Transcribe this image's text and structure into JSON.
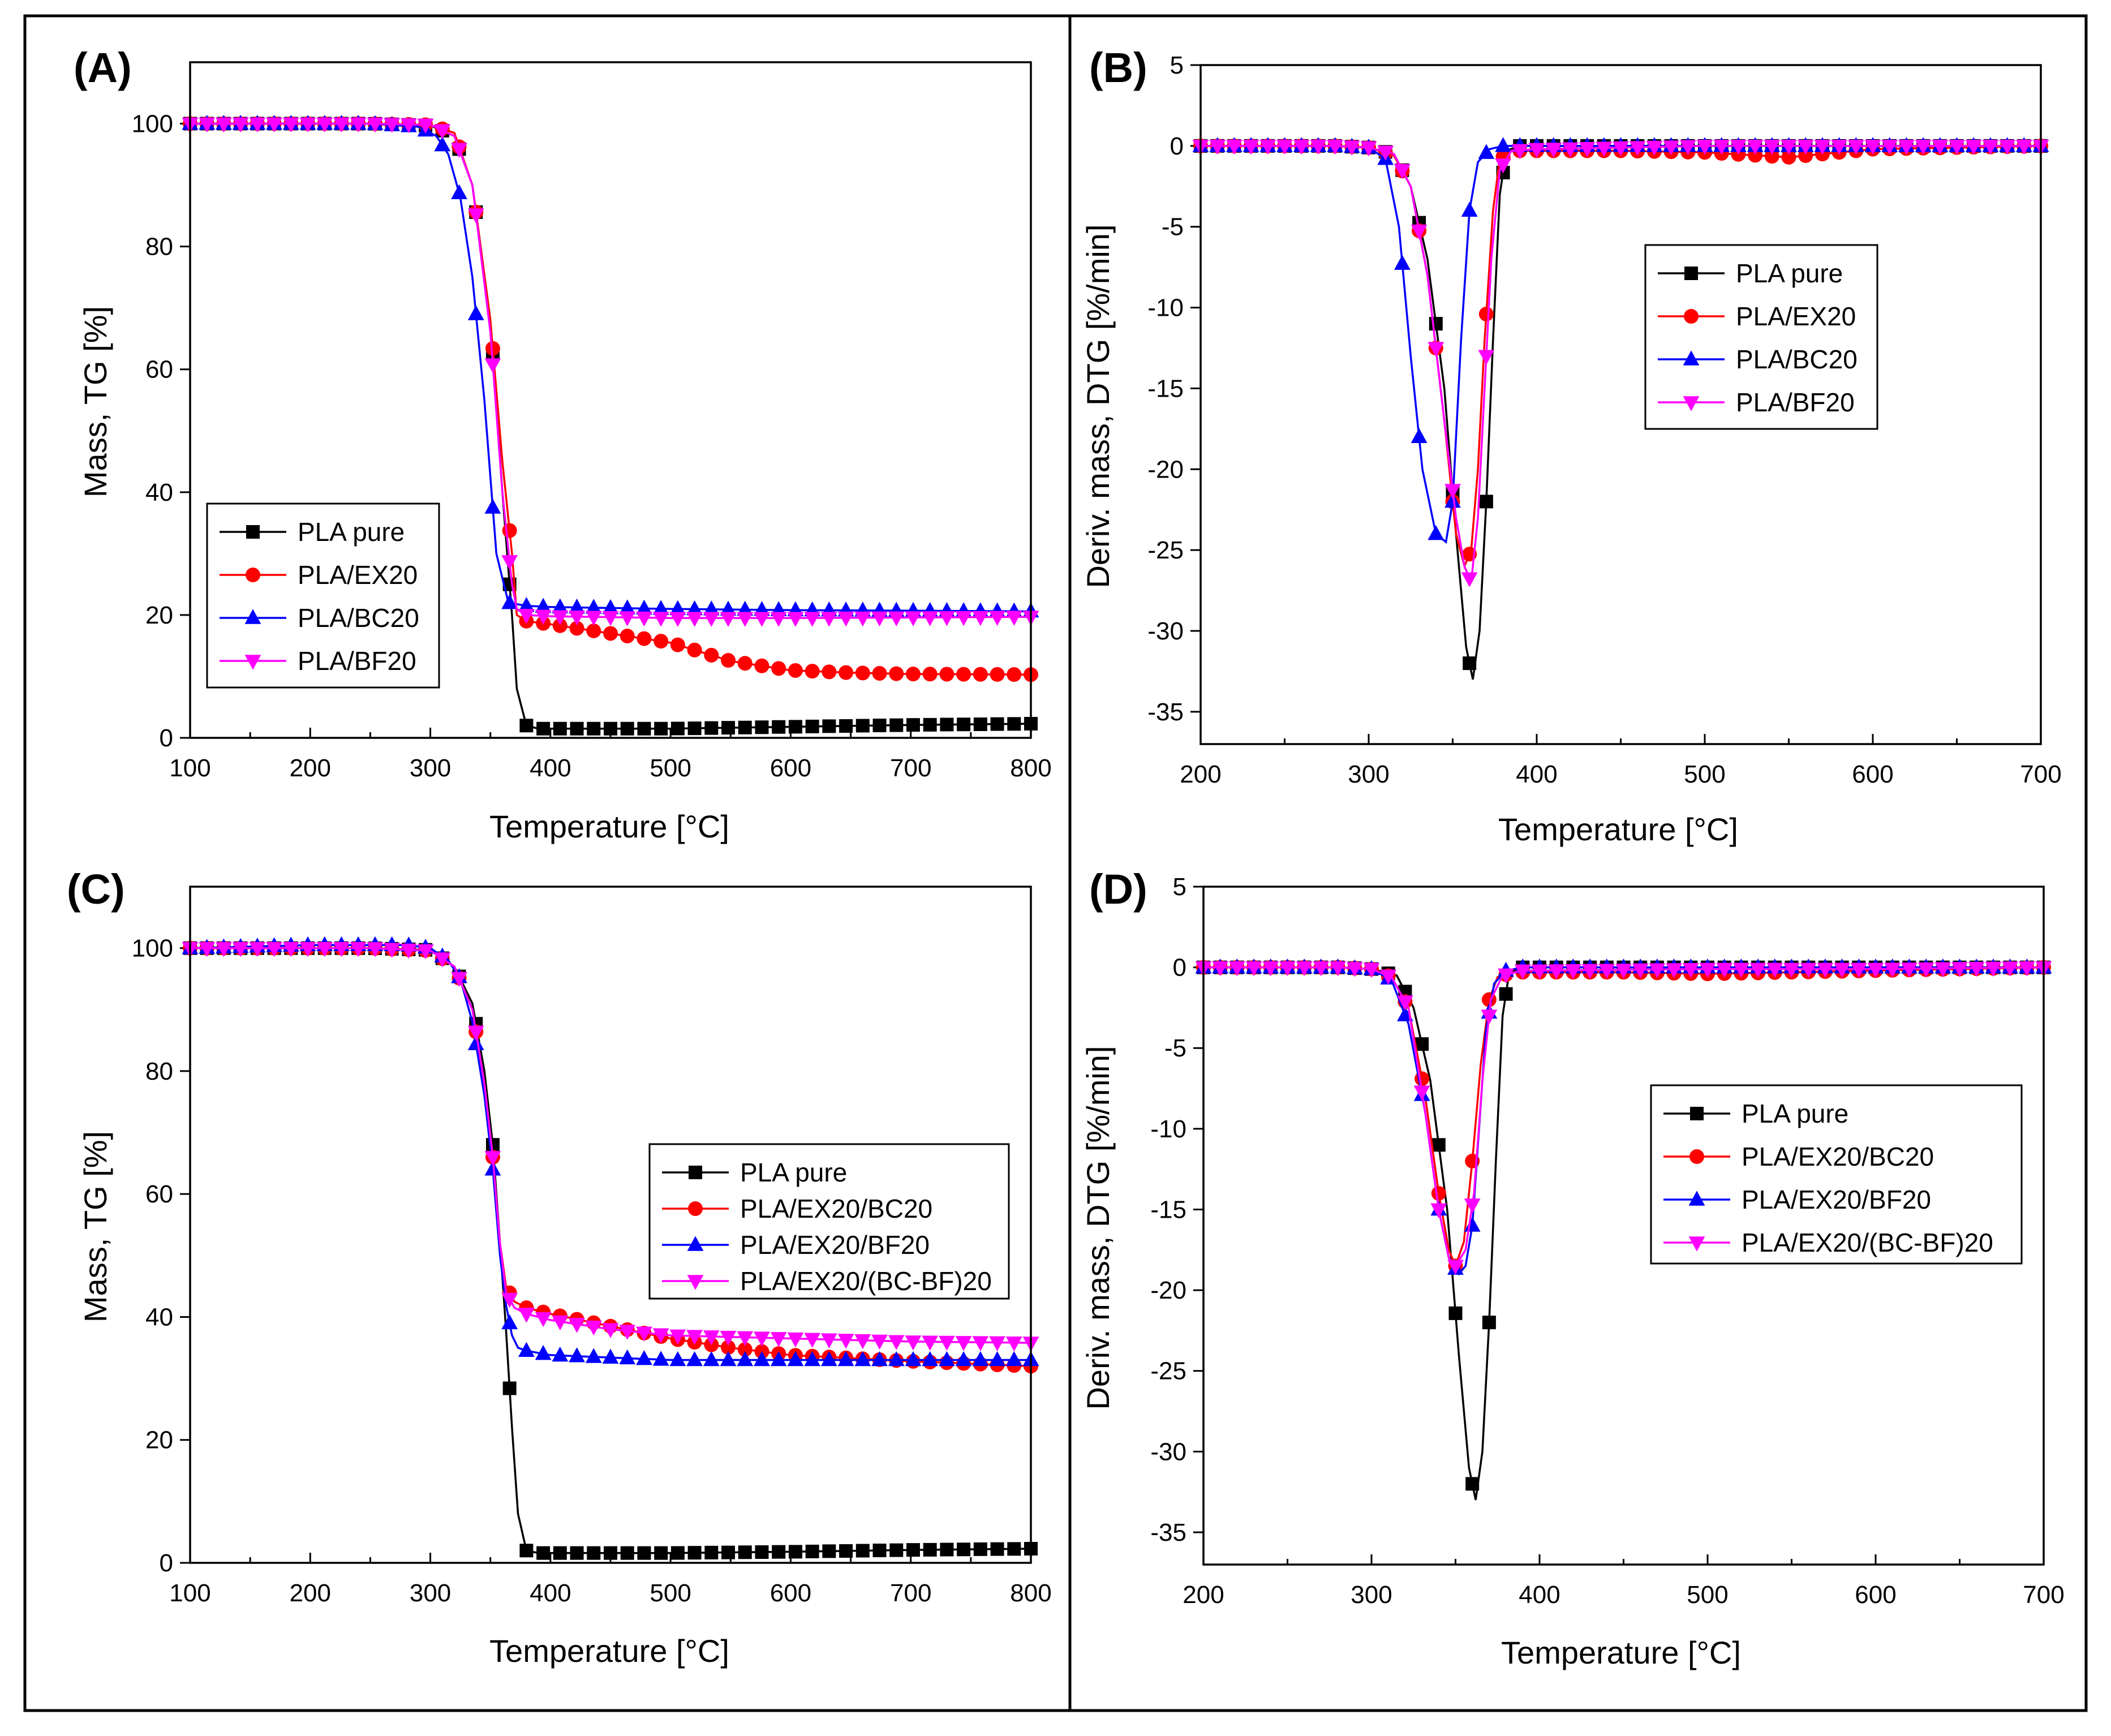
{
  "figure": {
    "colors": {
      "PLA pure": "#000000",
      "PLA/EX20": "#ff0000",
      "PLA/BC20": "#0000ff",
      "PLA/BF20": "#ff00ff",
      "PLA/EX20/BC20": "#ff0000",
      "PLA/EX20/BF20": "#0000ff",
      "PLA/EX20/(BC-BF)20": "#ff00ff"
    },
    "markers": {
      "PLA pure": "square",
      "PLA/EX20": "circle",
      "PLA/BC20": "triangle-up",
      "PLA/BF20": "triangle-down",
      "PLA/EX20/BC20": "circle",
      "PLA/EX20/BF20": "triangle-up",
      "PLA/EX20/(BC-BF)20": "triangle-down"
    }
  },
  "chart_data": [
    {
      "panel": "(A)",
      "type": "line",
      "xlabel": "Temperature [°C]",
      "ylabel": "Mass, TG [%]",
      "xlim": [
        100,
        800
      ],
      "ylim": [
        0,
        110
      ],
      "xticks": [
        100,
        200,
        300,
        400,
        500,
        600,
        700,
        800
      ],
      "yticks": [
        0,
        20,
        40,
        60,
        80,
        100
      ],
      "legend": "center-left",
      "series": [
        {
          "name": "PLA pure",
          "x": [
            100,
            250,
            300,
            320,
            335,
            350,
            360,
            368,
            372,
            380,
            390,
            500,
            600,
            700,
            800
          ],
          "y": [
            100,
            100,
            99.7,
            98,
            90,
            68,
            40,
            20,
            8,
            2,
            1.5,
            1.5,
            1.8,
            2.1,
            2.3
          ]
        },
        {
          "name": "PLA/EX20",
          "x": [
            100,
            250,
            300,
            320,
            335,
            350,
            360,
            368,
            372,
            380,
            400,
            450,
            500,
            550,
            600,
            650,
            700,
            800
          ],
          "y": [
            100,
            100,
            99.8,
            98.5,
            90,
            68,
            45,
            30,
            20,
            19,
            18.5,
            17,
            15.5,
            12.5,
            11,
            10.6,
            10.4,
            10.3
          ]
        },
        {
          "name": "PLA/BC20",
          "x": [
            100,
            250,
            290,
            305,
            315,
            325,
            335,
            345,
            355,
            365,
            380,
            400,
            500,
            600,
            700,
            800
          ],
          "y": [
            100,
            100,
            99.5,
            98,
            95,
            88,
            75,
            55,
            30,
            22,
            21.5,
            21.3,
            21,
            20.8,
            20.7,
            20.6
          ]
        },
        {
          "name": "PLA/BF20",
          "x": [
            100,
            250,
            300,
            320,
            335,
            350,
            360,
            368,
            372,
            380,
            400,
            500,
            600,
            700,
            800
          ],
          "y": [
            100,
            100,
            99.8,
            98,
            90,
            66,
            40,
            25,
            21,
            20,
            19.8,
            19.5,
            19.5,
            19.6,
            19.7
          ]
        }
      ]
    },
    {
      "panel": "(B)",
      "type": "line",
      "xlabel": "Temperature [°C]",
      "ylabel": "Deriv. mass, DTG [%/min]",
      "xlim": [
        200,
        700
      ],
      "ylim": [
        -37,
        5
      ],
      "xticks": [
        200,
        300,
        400,
        500,
        600,
        700
      ],
      "yticks": [
        5,
        0,
        -5,
        -10,
        -15,
        -20,
        -25,
        -30,
        -35
      ],
      "legend": "top-right",
      "series": [
        {
          "name": "PLA pure",
          "x": [
            200,
            280,
            300,
            315,
            325,
            335,
            345,
            352,
            358,
            362,
            366,
            370,
            374,
            378,
            382,
            390,
            400,
            500,
            600,
            700
          ],
          "y": [
            0,
            0,
            -0.1,
            -0.5,
            -2.5,
            -7,
            -15,
            -24,
            -31,
            -33,
            -30,
            -22,
            -12,
            -3,
            -0.3,
            0,
            0,
            0,
            0,
            0
          ]
        },
        {
          "name": "PLA/EX20",
          "x": [
            200,
            280,
            300,
            315,
            325,
            335,
            345,
            352,
            357,
            361,
            365,
            369,
            374,
            378,
            385,
            400,
            450,
            500,
            550,
            600,
            700
          ],
          "y": [
            0,
            0,
            -0.1,
            -0.6,
            -2.5,
            -8,
            -17,
            -24,
            -26,
            -25,
            -20,
            -12,
            -4,
            -0.8,
            -0.3,
            -0.3,
            -0.3,
            -0.4,
            -0.7,
            -0.2,
            0
          ]
        },
        {
          "name": "PLA/BC20",
          "x": [
            200,
            280,
            300,
            310,
            318,
            325,
            332,
            340,
            346,
            350,
            355,
            360,
            365,
            372,
            380,
            400,
            500,
            600,
            700
          ],
          "y": [
            0,
            0,
            -0.1,
            -0.8,
            -5,
            -13,
            -20,
            -24,
            -24.5,
            -22,
            -12,
            -4,
            -1,
            -0.2,
            0,
            0,
            0,
            0,
            0
          ]
        },
        {
          "name": "PLA/BF20",
          "x": [
            200,
            280,
            300,
            315,
            325,
            335,
            345,
            352,
            357,
            361,
            365,
            369,
            373,
            378,
            385,
            400,
            500,
            600,
            700
          ],
          "y": [
            0,
            0,
            -0.1,
            -0.5,
            -2.5,
            -8,
            -17,
            -23,
            -26,
            -27,
            -23,
            -15,
            -7,
            -1.5,
            -0.3,
            -0.2,
            0,
            0,
            0
          ]
        }
      ]
    },
    {
      "panel": "(C)",
      "type": "line",
      "xlabel": "Temperature [°C]",
      "ylabel": "Mass, TG [%]",
      "xlim": [
        100,
        800
      ],
      "ylim": [
        0,
        110
      ],
      "xticks": [
        100,
        200,
        300,
        400,
        500,
        600,
        700,
        800
      ],
      "yticks": [
        0,
        20,
        40,
        60,
        80,
        100
      ],
      "legend": "center-right",
      "series": [
        {
          "name": "PLA pure",
          "x": [
            100,
            250,
            300,
            320,
            335,
            345,
            352,
            358,
            363,
            368,
            373,
            380,
            390,
            500,
            600,
            700,
            800
          ],
          "y": [
            100,
            100,
            99.7,
            97,
            91,
            80,
            68,
            52,
            38,
            22,
            8,
            2,
            1.6,
            1.6,
            1.8,
            2.1,
            2.3
          ]
        },
        {
          "name": "PLA/EX20/BC20",
          "x": [
            100,
            250,
            300,
            320,
            335,
            345,
            352,
            358,
            363,
            370,
            380,
            400,
            450,
            500,
            550,
            600,
            700,
            800
          ],
          "y": [
            100,
            100,
            99.6,
            97,
            90,
            78,
            66,
            52,
            45,
            42.5,
            41.5,
            40.5,
            38.5,
            36.5,
            35,
            33.8,
            32.8,
            32
          ]
        },
        {
          "name": "PLA/EX20/BF20",
          "x": [
            100,
            200,
            280,
            300,
            315,
            325,
            335,
            345,
            352,
            358,
            363,
            368,
            373,
            380,
            400,
            500,
            600,
            700,
            800
          ],
          "y": [
            100,
            100.5,
            100.5,
            100,
            98,
            95,
            88,
            76,
            64,
            50,
            42,
            37,
            35,
            34.5,
            33.8,
            33,
            33,
            33,
            33
          ]
        },
        {
          "name": "PLA/EX20/(BC-BF)20",
          "x": [
            100,
            250,
            300,
            320,
            335,
            345,
            352,
            358,
            363,
            370,
            380,
            400,
            450,
            500,
            600,
            700,
            800
          ],
          "y": [
            100,
            100,
            99.6,
            97,
            90,
            78,
            66,
            52,
            44,
            41.5,
            40.5,
            39.5,
            38,
            37,
            36.5,
            36,
            35.8
          ]
        }
      ]
    },
    {
      "panel": "(D)",
      "type": "line",
      "xlabel": "Temperature [°C]",
      "ylabel": "Deriv. mass, DTG [%/min]",
      "xlim": [
        200,
        700
      ],
      "ylim": [
        -37,
        5
      ],
      "xticks": [
        200,
        300,
        400,
        500,
        600,
        700
      ],
      "yticks": [
        5,
        0,
        -5,
        -10,
        -15,
        -20,
        -25,
        -30,
        -35
      ],
      "legend": "center-right",
      "series": [
        {
          "name": "PLA pure",
          "x": [
            200,
            280,
            300,
            315,
            325,
            335,
            345,
            352,
            358,
            362,
            366,
            370,
            374,
            378,
            382,
            390,
            400,
            500,
            600,
            700
          ],
          "y": [
            0,
            0,
            -0.1,
            -0.5,
            -2.5,
            -7,
            -15,
            -24,
            -31,
            -33,
            -30,
            -22,
            -12,
            -3,
            -0.3,
            0,
            0,
            0,
            0,
            0
          ]
        },
        {
          "name": "PLA/EX20/BC20",
          "x": [
            200,
            280,
            300,
            312,
            322,
            332,
            340,
            346,
            350,
            355,
            360,
            365,
            370,
            375,
            385,
            400,
            450,
            500,
            600,
            700
          ],
          "y": [
            0,
            0,
            -0.1,
            -0.6,
            -2.5,
            -8,
            -14,
            -17.5,
            -18.5,
            -17,
            -12,
            -6,
            -2,
            -0.6,
            -0.3,
            -0.3,
            -0.3,
            -0.4,
            -0.2,
            0
          ]
        },
        {
          "name": "PLA/EX20/BF20",
          "x": [
            200,
            280,
            300,
            312,
            322,
            332,
            340,
            346,
            352,
            356,
            360,
            364,
            368,
            373,
            380,
            390,
            400,
            500,
            600,
            700
          ],
          "y": [
            0,
            0,
            -0.1,
            -0.8,
            -3.5,
            -9,
            -15,
            -18,
            -19,
            -18.5,
            -16,
            -10,
            -4,
            -1,
            -0.2,
            0,
            0,
            0,
            0,
            0
          ]
        },
        {
          "name": "PLA/EX20/(BC-BF)20",
          "x": [
            200,
            280,
            300,
            312,
            322,
            332,
            340,
            346,
            350,
            356,
            361,
            366,
            371,
            378,
            390,
            400,
            500,
            600,
            700
          ],
          "y": [
            0,
            0,
            -0.1,
            -0.6,
            -2.5,
            -9,
            -15,
            -18,
            -18.5,
            -17.5,
            -14,
            -7,
            -2,
            -0.5,
            -0.2,
            -0.2,
            -0.1,
            -0.1,
            0
          ]
        }
      ]
    }
  ]
}
